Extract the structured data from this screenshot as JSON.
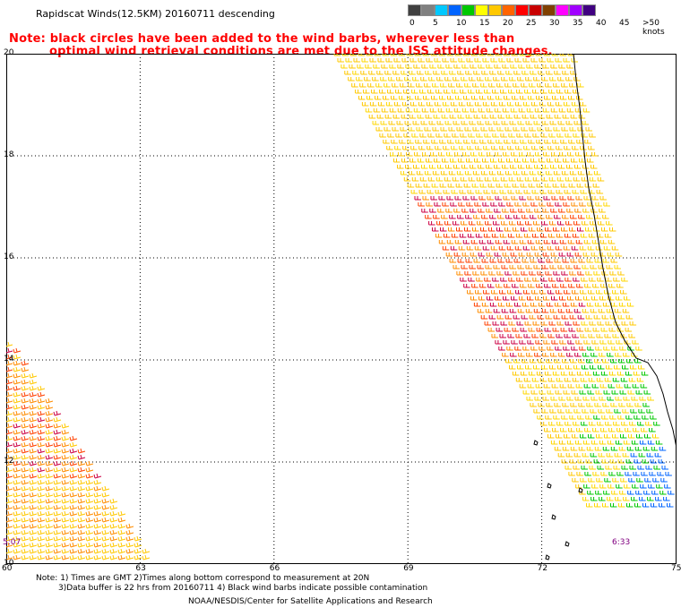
{
  "title": "Rapidscat Winds(12.5KM) 20160711 descending",
  "note": {
    "line1": "Note: black circles have been added to the wind barbs, wherever less than",
    "line2": "optimal wind retrieval conditions are met due to the ISS attitude changes."
  },
  "legend": {
    "colors": [
      "#404040",
      "#808080",
      "#00c8ff",
      "#0064ff",
      "#00c800",
      "#ffff00",
      "#ffc800",
      "#ff6400",
      "#ff0000",
      "#c80000",
      "#804000",
      "#ff00ff",
      "#a000ff",
      "#400080"
    ],
    "labels": [
      "0",
      "5",
      "10",
      "15",
      "20",
      "25",
      "30",
      "35",
      "40",
      "45",
      ">50 knots"
    ]
  },
  "axes": {
    "lat_labels": [
      "20",
      "18",
      "16",
      "14",
      "12",
      "10"
    ],
    "lon_labels": [
      "60",
      "63",
      "66",
      "69",
      "72",
      "75"
    ]
  },
  "times": {
    "left": "5:07",
    "right": "6:33"
  },
  "footer": {
    "line1": "Note: 1) Times are GMT 2)Times along bottom correspond to measurement at 20N",
    "line2": "3)Data buffer is 22 hrs from 20160711 4) Black wind barbs indicate possible contamination",
    "line3": "NOAA/NESDIS/Center for Satellite Applications and Research"
  }
}
